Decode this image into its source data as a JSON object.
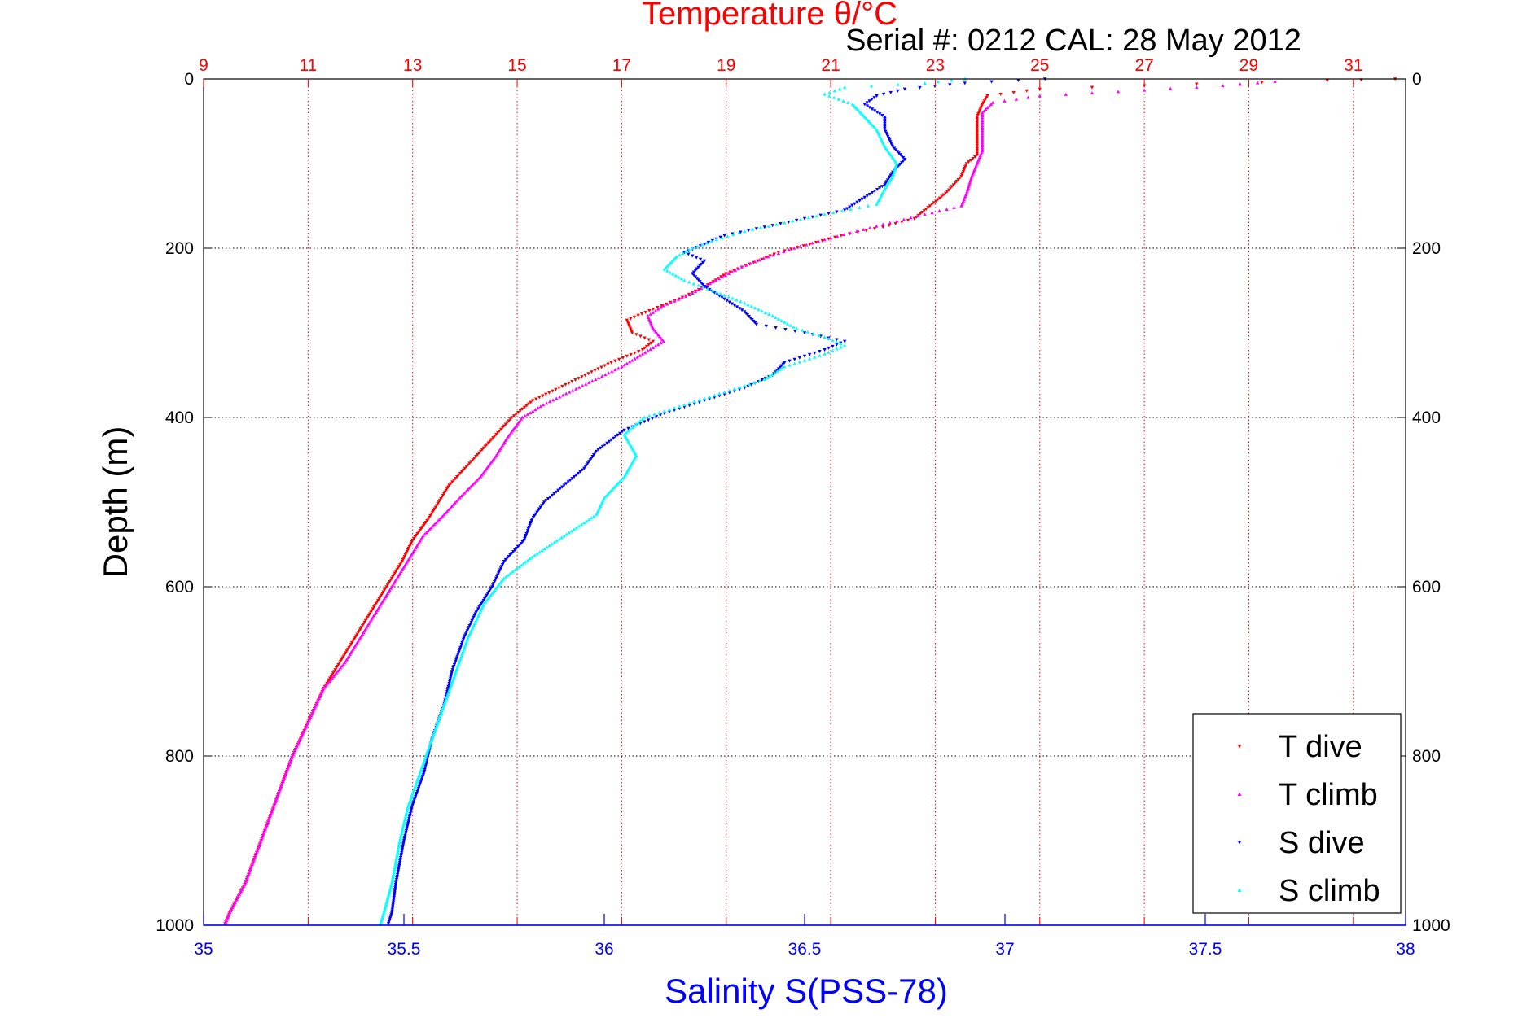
{
  "chart_data": {
    "type": "scatter",
    "title": "Temperature θ/°C",
    "subtitle": "Serial #: 0212  CAL: 28 May 2012",
    "xlabel_bottom": "Salinity S(PSS-78)",
    "xlabel_top": "Temperature θ/°C",
    "ylabel": "Depth (m)",
    "xlim_bottom": [
      35,
      38
    ],
    "xlim_top": [
      9,
      32
    ],
    "ylim": [
      0,
      1000
    ],
    "y_reversed": true,
    "x_ticks_bottom": [
      "35",
      "35.5",
      "36",
      "36.5",
      "37",
      "37.5",
      "38"
    ],
    "x_ticks_top": [
      "9",
      "11",
      "13",
      "15",
      "17",
      "19",
      "21",
      "23",
      "25",
      "27",
      "29",
      "31"
    ],
    "y_ticks": [
      "0",
      "200",
      "400",
      "600",
      "800",
      "1000"
    ],
    "grid": true,
    "legend_position": "bottom-right",
    "series": [
      {
        "name": "T dive",
        "color": "#ff0000",
        "axis": "top",
        "points": [
          [
            31.8,
            0
          ],
          [
            30.5,
            2
          ],
          [
            28.0,
            6
          ],
          [
            25.0,
            12
          ],
          [
            24.0,
            20
          ],
          [
            23.9,
            30
          ],
          [
            23.8,
            45
          ],
          [
            23.8,
            60
          ],
          [
            23.8,
            75
          ],
          [
            23.8,
            90
          ],
          [
            23.6,
            100
          ],
          [
            23.5,
            115
          ],
          [
            23.2,
            135
          ],
          [
            22.9,
            150
          ],
          [
            22.6,
            165
          ],
          [
            22.0,
            175
          ],
          [
            21.2,
            185
          ],
          [
            20.6,
            195
          ],
          [
            20.0,
            205
          ],
          [
            19.6,
            215
          ],
          [
            19.0,
            230
          ],
          [
            18.6,
            245
          ],
          [
            18.1,
            260
          ],
          [
            17.6,
            272
          ],
          [
            17.1,
            285
          ],
          [
            17.2,
            300
          ],
          [
            17.6,
            310
          ],
          [
            17.4,
            320
          ],
          [
            16.8,
            335
          ],
          [
            16.3,
            350
          ],
          [
            15.8,
            365
          ],
          [
            15.3,
            380
          ],
          [
            14.9,
            400
          ],
          [
            14.6,
            420
          ],
          [
            14.3,
            440
          ],
          [
            14.0,
            460
          ],
          [
            13.7,
            480
          ],
          [
            13.5,
            500
          ],
          [
            13.3,
            520
          ],
          [
            13.0,
            545
          ],
          [
            12.8,
            570
          ],
          [
            12.5,
            600
          ],
          [
            12.2,
            630
          ],
          [
            11.9,
            660
          ],
          [
            11.6,
            690
          ],
          [
            11.3,
            720
          ],
          [
            11.0,
            760
          ],
          [
            10.7,
            800
          ],
          [
            10.4,
            850
          ],
          [
            10.1,
            900
          ],
          [
            9.8,
            950
          ],
          [
            9.5,
            985
          ],
          [
            9.4,
            1000
          ]
        ]
      },
      {
        "name": "T climb",
        "color": "#ff00ff",
        "axis": "top",
        "points": [
          [
            29.5,
            3
          ],
          [
            28.5,
            8
          ],
          [
            26.5,
            15
          ],
          [
            25.0,
            20
          ],
          [
            24.1,
            28
          ],
          [
            23.9,
            40
          ],
          [
            23.9,
            55
          ],
          [
            23.9,
            70
          ],
          [
            23.9,
            85
          ],
          [
            23.8,
            100
          ],
          [
            23.7,
            115
          ],
          [
            23.6,
            135
          ],
          [
            23.5,
            150
          ],
          [
            22.8,
            160
          ],
          [
            22.0,
            172
          ],
          [
            21.0,
            188
          ],
          [
            20.3,
            200
          ],
          [
            19.8,
            210
          ],
          [
            19.3,
            222
          ],
          [
            18.8,
            238
          ],
          [
            18.3,
            255
          ],
          [
            17.8,
            268
          ],
          [
            17.5,
            280
          ],
          [
            17.6,
            295
          ],
          [
            17.8,
            310
          ],
          [
            17.4,
            325
          ],
          [
            17.0,
            340
          ],
          [
            16.5,
            355
          ],
          [
            16.0,
            370
          ],
          [
            15.5,
            385
          ],
          [
            15.1,
            400
          ],
          [
            14.8,
            425
          ],
          [
            14.6,
            445
          ],
          [
            14.3,
            470
          ],
          [
            13.9,
            495
          ],
          [
            13.6,
            515
          ],
          [
            13.2,
            540
          ],
          [
            12.9,
            570
          ],
          [
            12.6,
            600
          ],
          [
            12.3,
            630
          ],
          [
            12.0,
            660
          ],
          [
            11.7,
            690
          ],
          [
            11.3,
            720
          ],
          [
            11.0,
            760
          ],
          [
            10.7,
            800
          ],
          [
            10.4,
            850
          ],
          [
            10.1,
            900
          ],
          [
            9.8,
            950
          ],
          [
            9.5,
            985
          ],
          [
            9.4,
            1000
          ]
        ]
      },
      {
        "name": "S dive",
        "color": "#0000ff",
        "axis": "bottom",
        "points": [
          [
            37.1,
            0
          ],
          [
            36.9,
            5
          ],
          [
            36.75,
            12
          ],
          [
            36.68,
            20
          ],
          [
            36.65,
            30
          ],
          [
            36.7,
            45
          ],
          [
            36.7,
            60
          ],
          [
            36.72,
            80
          ],
          [
            36.75,
            95
          ],
          [
            36.72,
            110
          ],
          [
            36.7,
            125
          ],
          [
            36.65,
            140
          ],
          [
            36.6,
            155
          ],
          [
            36.5,
            165
          ],
          [
            36.4,
            175
          ],
          [
            36.3,
            185
          ],
          [
            36.25,
            195
          ],
          [
            36.2,
            205
          ],
          [
            36.25,
            215
          ],
          [
            36.22,
            230
          ],
          [
            36.25,
            245
          ],
          [
            36.3,
            260
          ],
          [
            36.35,
            275
          ],
          [
            36.38,
            290
          ],
          [
            36.5,
            300
          ],
          [
            36.6,
            310
          ],
          [
            36.55,
            320
          ],
          [
            36.45,
            335
          ],
          [
            36.42,
            350
          ],
          [
            36.35,
            365
          ],
          [
            36.25,
            380
          ],
          [
            36.15,
            395
          ],
          [
            36.05,
            415
          ],
          [
            35.98,
            440
          ],
          [
            35.95,
            460
          ],
          [
            35.9,
            480
          ],
          [
            35.85,
            500
          ],
          [
            35.82,
            520
          ],
          [
            35.8,
            545
          ],
          [
            35.75,
            570
          ],
          [
            35.72,
            600
          ],
          [
            35.68,
            630
          ],
          [
            35.65,
            660
          ],
          [
            35.62,
            700
          ],
          [
            35.6,
            740
          ],
          [
            35.57,
            780
          ],
          [
            35.55,
            820
          ],
          [
            35.52,
            860
          ],
          [
            35.5,
            900
          ],
          [
            35.48,
            950
          ],
          [
            35.47,
            985
          ],
          [
            35.46,
            1000
          ]
        ]
      },
      {
        "name": "S climb",
        "color": "#00ffff",
        "axis": "bottom",
        "points": [
          [
            36.9,
            0
          ],
          [
            36.8,
            5
          ],
          [
            36.6,
            10
          ],
          [
            36.55,
            18
          ],
          [
            36.62,
            30
          ],
          [
            36.65,
            45
          ],
          [
            36.68,
            60
          ],
          [
            36.7,
            80
          ],
          [
            36.73,
            100
          ],
          [
            36.72,
            115
          ],
          [
            36.7,
            130
          ],
          [
            36.68,
            148
          ],
          [
            36.55,
            160
          ],
          [
            36.45,
            170
          ],
          [
            36.35,
            180
          ],
          [
            36.28,
            190
          ],
          [
            36.22,
            200
          ],
          [
            36.18,
            210
          ],
          [
            36.15,
            225
          ],
          [
            36.2,
            238
          ],
          [
            36.27,
            250
          ],
          [
            36.35,
            265
          ],
          [
            36.42,
            280
          ],
          [
            36.48,
            295
          ],
          [
            36.55,
            305
          ],
          [
            36.6,
            315
          ],
          [
            36.55,
            325
          ],
          [
            36.45,
            340
          ],
          [
            36.4,
            355
          ],
          [
            36.3,
            370
          ],
          [
            36.2,
            385
          ],
          [
            36.1,
            400
          ],
          [
            36.05,
            420
          ],
          [
            36.08,
            445
          ],
          [
            36.05,
            470
          ],
          [
            36.0,
            495
          ],
          [
            35.98,
            515
          ],
          [
            35.9,
            540
          ],
          [
            35.82,
            565
          ],
          [
            35.75,
            590
          ],
          [
            35.7,
            620
          ],
          [
            35.66,
            660
          ],
          [
            35.63,
            700
          ],
          [
            35.6,
            740
          ],
          [
            35.57,
            780
          ],
          [
            35.54,
            820
          ],
          [
            35.51,
            860
          ],
          [
            35.49,
            900
          ],
          [
            35.47,
            950
          ],
          [
            35.45,
            985
          ],
          [
            35.44,
            1000
          ]
        ]
      }
    ]
  }
}
